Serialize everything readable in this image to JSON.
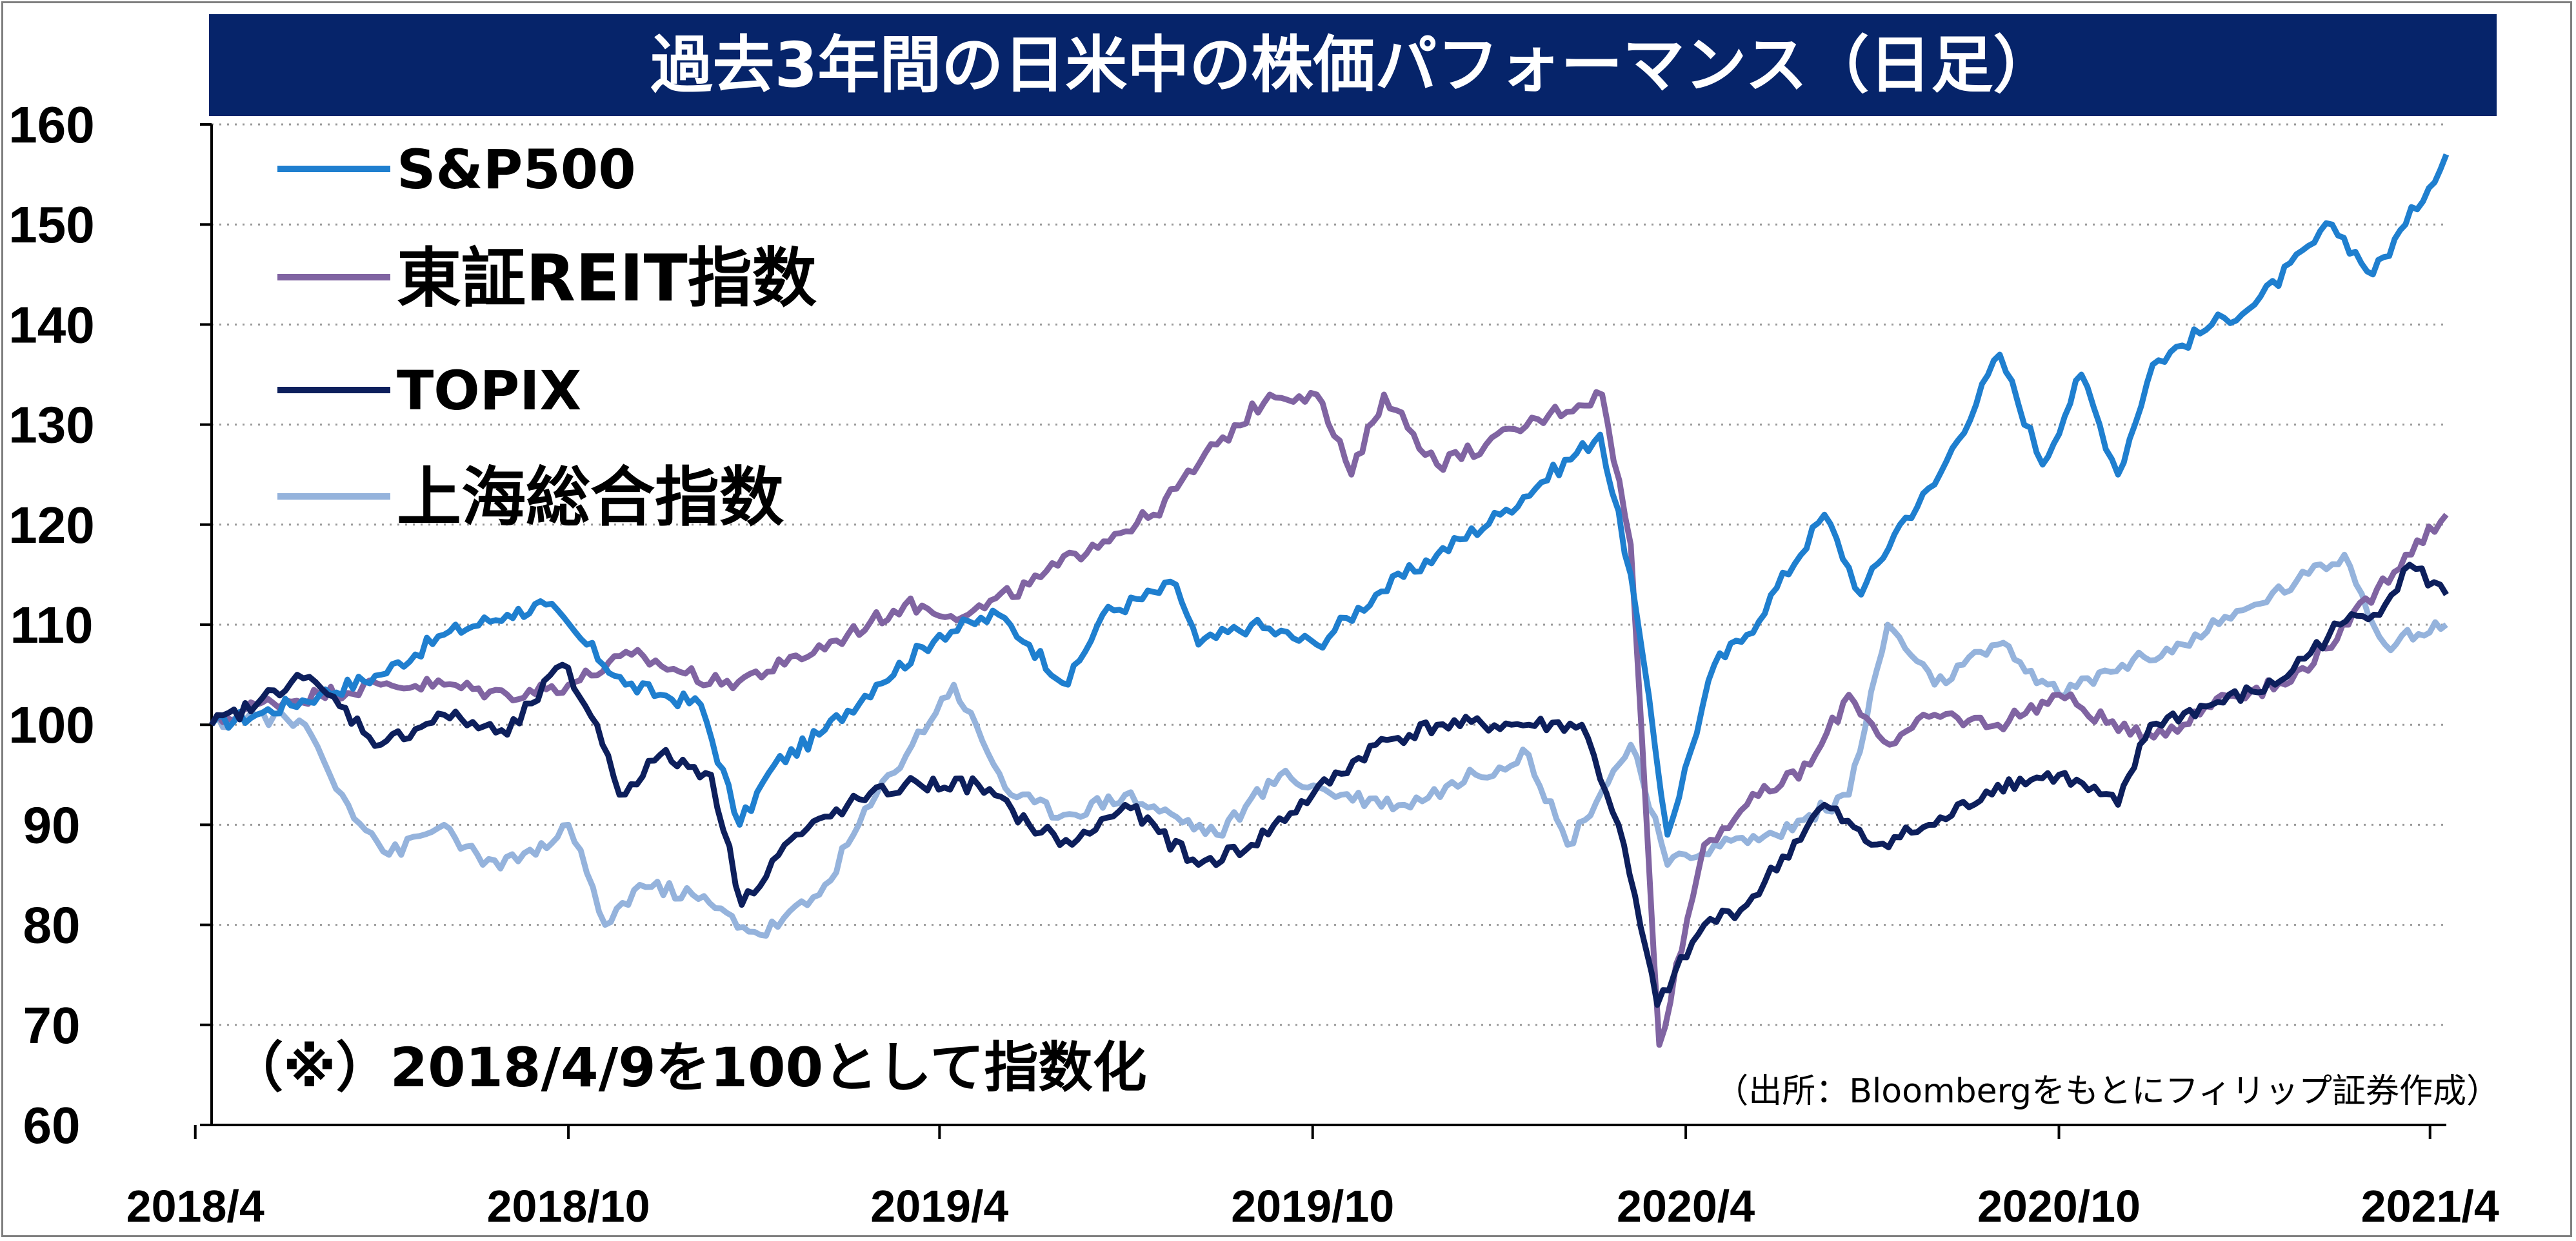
{
  "title": "過去3年間の日米中の株価パフォーマンス（日足）",
  "note": "（※）2018/4/9を100として指数化",
  "source": "（出所：Bloombergをもとにフィリップ証券作成）",
  "chart_data": {
    "type": "line",
    "ylim": [
      60,
      160
    ],
    "yticks": [
      "60",
      "70",
      "80",
      "90",
      "100",
      "110",
      "120",
      "130",
      "140",
      "150",
      "160"
    ],
    "xticks": [
      "2018/4",
      "2018/10",
      "2019/4",
      "2019/10",
      "2020/4",
      "2020/10",
      "2021/4"
    ],
    "x_start": "2018-04-09",
    "x_end": "2021-04-09",
    "grid": "horizontal dotted",
    "legend_position": "top-left",
    "series": [
      {
        "name": "S&P500",
        "color": "#1f7fcf",
        "points": [
          [
            "2018-04-09",
            100
          ],
          [
            "2018-05-01",
            101
          ],
          [
            "2018-06-01",
            103
          ],
          [
            "2018-07-01",
            105
          ],
          [
            "2018-08-01",
            109
          ],
          [
            "2018-09-01",
            111
          ],
          [
            "2018-09-20",
            112
          ],
          [
            "2018-10-10",
            108
          ],
          [
            "2018-10-29",
            104
          ],
          [
            "2018-11-15",
            103
          ],
          [
            "2018-12-05",
            102
          ],
          [
            "2018-12-24",
            90
          ],
          [
            "2019-01-10",
            96
          ],
          [
            "2019-02-01",
            99
          ],
          [
            "2019-03-01",
            104
          ],
          [
            "2019-04-01",
            109
          ],
          [
            "2019-04-30",
            111
          ],
          [
            "2019-05-15",
            108
          ],
          [
            "2019-06-03",
            104
          ],
          [
            "2019-06-20",
            111
          ],
          [
            "2019-07-26",
            114
          ],
          [
            "2019-08-06",
            108
          ],
          [
            "2019-09-01",
            110
          ],
          [
            "2019-10-03",
            108
          ],
          [
            "2019-11-01",
            113
          ],
          [
            "2019-12-01",
            117
          ],
          [
            "2020-01-01",
            121
          ],
          [
            "2020-02-19",
            129
          ],
          [
            "2020-03-05",
            115
          ],
          [
            "2020-03-23",
            89
          ],
          [
            "2020-04-15",
            106
          ],
          [
            "2020-05-01",
            109
          ],
          [
            "2020-06-08",
            121
          ],
          [
            "2020-06-26",
            113
          ],
          [
            "2020-07-15",
            120
          ],
          [
            "2020-08-01",
            124
          ],
          [
            "2020-09-02",
            137
          ],
          [
            "2020-09-23",
            126
          ],
          [
            "2020-10-12",
            135
          ],
          [
            "2020-10-30",
            125
          ],
          [
            "2020-11-16",
            136
          ],
          [
            "2020-12-15",
            140
          ],
          [
            "2021-01-05",
            142
          ],
          [
            "2021-02-12",
            150
          ],
          [
            "2021-03-04",
            145
          ],
          [
            "2021-03-20",
            150
          ],
          [
            "2021-04-09",
            157
          ]
        ]
      },
      {
        "name": "東証REIT指数",
        "color": "#8064a2",
        "points": [
          [
            "2018-04-09",
            100
          ],
          [
            "2018-05-01",
            102
          ],
          [
            "2018-06-01",
            103
          ],
          [
            "2018-07-01",
            104
          ],
          [
            "2018-08-01",
            104
          ],
          [
            "2018-09-01",
            103
          ],
          [
            "2018-10-01",
            104
          ],
          [
            "2018-11-01",
            107
          ],
          [
            "2018-12-15",
            104
          ],
          [
            "2019-01-15",
            106
          ],
          [
            "2019-02-15",
            109
          ],
          [
            "2019-03-15",
            112
          ],
          [
            "2019-04-15",
            111
          ],
          [
            "2019-05-15",
            114
          ],
          [
            "2019-06-15",
            118
          ],
          [
            "2019-07-15",
            121
          ],
          [
            "2019-08-15",
            128
          ],
          [
            "2019-09-10",
            133
          ],
          [
            "2019-10-03",
            133
          ],
          [
            "2019-10-20",
            125
          ],
          [
            "2019-11-05",
            133
          ],
          [
            "2019-12-01",
            126
          ],
          [
            "2019-12-25",
            128
          ],
          [
            "2020-01-25",
            131
          ],
          [
            "2020-02-20",
            133
          ],
          [
            "2020-03-05",
            118
          ],
          [
            "2020-03-19",
            68
          ],
          [
            "2020-04-10",
            88
          ],
          [
            "2020-05-01",
            92
          ],
          [
            "2020-06-01",
            96
          ],
          [
            "2020-06-20",
            103
          ],
          [
            "2020-07-10",
            98
          ],
          [
            "2020-08-01",
            101
          ],
          [
            "2020-09-01",
            100
          ],
          [
            "2020-10-01",
            103
          ],
          [
            "2020-11-05",
            99
          ],
          [
            "2020-12-01",
            100
          ],
          [
            "2020-12-20",
            103
          ],
          [
            "2021-01-20",
            104
          ],
          [
            "2021-02-20",
            110
          ],
          [
            "2021-03-20",
            117
          ],
          [
            "2021-04-09",
            121
          ]
        ]
      },
      {
        "name": "TOPIX",
        "color": "#0d1f5c",
        "points": [
          [
            "2018-04-09",
            100
          ],
          [
            "2018-05-01",
            102
          ],
          [
            "2018-05-21",
            105
          ],
          [
            "2018-06-05",
            103
          ],
          [
            "2018-07-01",
            98
          ],
          [
            "2018-08-01",
            101
          ],
          [
            "2018-09-01",
            99
          ],
          [
            "2018-09-28",
            106
          ],
          [
            "2018-10-15",
            100
          ],
          [
            "2018-10-26",
            93
          ],
          [
            "2018-11-15",
            97
          ],
          [
            "2018-12-10",
            95
          ],
          [
            "2018-12-25",
            82
          ],
          [
            "2019-01-15",
            88
          ],
          [
            "2019-02-15",
            92
          ],
          [
            "2019-03-15",
            94
          ],
          [
            "2019-04-20",
            94
          ],
          [
            "2019-05-15",
            90
          ],
          [
            "2019-06-05",
            88
          ],
          [
            "2019-07-01",
            92
          ],
          [
            "2019-08-06",
            86
          ],
          [
            "2019-09-01",
            88
          ],
          [
            "2019-10-01",
            93
          ],
          [
            "2019-11-01",
            98
          ],
          [
            "2019-12-01",
            100
          ],
          [
            "2020-01-15",
            100
          ],
          [
            "2020-02-10",
            100
          ],
          [
            "2020-02-28",
            90
          ],
          [
            "2020-03-18",
            72
          ],
          [
            "2020-04-10",
            80
          ],
          [
            "2020-05-01",
            82
          ],
          [
            "2020-06-08",
            92
          ],
          [
            "2020-07-01",
            88
          ],
          [
            "2020-08-01",
            90
          ],
          [
            "2020-09-01",
            94
          ],
          [
            "2020-10-01",
            95
          ],
          [
            "2020-10-30",
            92
          ],
          [
            "2020-11-15",
            100
          ],
          [
            "2020-12-15",
            102
          ],
          [
            "2021-01-15",
            104
          ],
          [
            "2021-02-16",
            110
          ],
          [
            "2021-03-10",
            112
          ],
          [
            "2021-03-22",
            116
          ],
          [
            "2021-04-09",
            113
          ]
        ]
      },
      {
        "name": "上海総合指数",
        "color": "#95b3dc",
        "points": [
          [
            "2018-04-09",
            100
          ],
          [
            "2018-05-01",
            101
          ],
          [
            "2018-05-25",
            100
          ],
          [
            "2018-06-15",
            92
          ],
          [
            "2018-07-05",
            87
          ],
          [
            "2018-08-01",
            90
          ],
          [
            "2018-08-20",
            86
          ],
          [
            "2018-09-15",
            87
          ],
          [
            "2018-10-01",
            90
          ],
          [
            "2018-10-19",
            80
          ],
          [
            "2018-11-05",
            84
          ],
          [
            "2018-12-01",
            83
          ],
          [
            "2019-01-03",
            79
          ],
          [
            "2019-02-01",
            83
          ],
          [
            "2019-03-01",
            93
          ],
          [
            "2019-04-08",
            104
          ],
          [
            "2019-05-06",
            93
          ],
          [
            "2019-06-01",
            91
          ],
          [
            "2019-07-01",
            93
          ],
          [
            "2019-08-15",
            89
          ],
          [
            "2019-09-15",
            95
          ],
          [
            "2019-10-15",
            93
          ],
          [
            "2019-11-15",
            92
          ],
          [
            "2019-12-20",
            95
          ],
          [
            "2020-01-15",
            97
          ],
          [
            "2020-02-03",
            88
          ],
          [
            "2020-03-05",
            98
          ],
          [
            "2020-03-23",
            86
          ],
          [
            "2020-04-15",
            88
          ],
          [
            "2020-05-15",
            89
          ],
          [
            "2020-06-20",
            93
          ],
          [
            "2020-07-09",
            110
          ],
          [
            "2020-08-01",
            104
          ],
          [
            "2020-09-01",
            108
          ],
          [
            "2020-10-01",
            103
          ],
          [
            "2020-11-01",
            106
          ],
          [
            "2020-12-01",
            108
          ],
          [
            "2021-01-05",
            112
          ],
          [
            "2021-02-18",
            117
          ],
          [
            "2021-03-10",
            108
          ],
          [
            "2021-04-09",
            110
          ]
        ]
      }
    ]
  }
}
